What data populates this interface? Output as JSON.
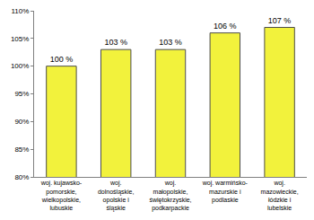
{
  "chart_data": {
    "type": "bar",
    "categories": [
      "woj. kujawsko-\npomorskie,\nwielkopolskie,\nlubuskie",
      "woj.\ndolnośląskie,\nopolskie i\nśląskie",
      "woj.\nmałopolskie,\nświętokrzyskie,\npodkarpackie",
      "woj. warmińsko-\nmazurskie i\npodlaskie",
      "woj.\nmazowieckie,\nłódzkie i\nlubelskie"
    ],
    "values": [
      100,
      103,
      103,
      106,
      107
    ],
    "value_labels": [
      "100 %",
      "103 %",
      "103 %",
      "106 %",
      "107 %"
    ],
    "data_labels": true,
    "color": "#f2f23c",
    "ylim": [
      80,
      110
    ],
    "yticks": [
      {
        "value": 80,
        "label": "80%"
      },
      {
        "value": 85,
        "label": "85%"
      },
      {
        "value": 90,
        "label": "90%"
      },
      {
        "value": 95,
        "label": "95%"
      },
      {
        "value": 100,
        "label": "100%"
      },
      {
        "value": 105,
        "label": "105%"
      },
      {
        "value": 110,
        "label": "110%"
      }
    ],
    "grid": false
  }
}
